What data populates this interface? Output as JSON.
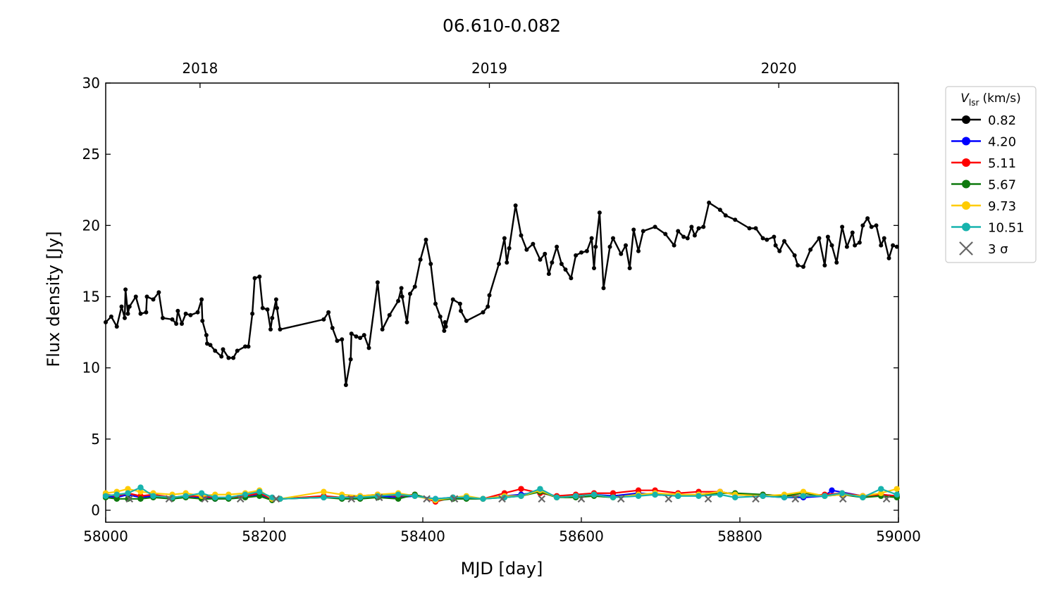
{
  "chart_data": {
    "type": "line",
    "title": "06.610-0.082",
    "xlabel": "MJD [day]",
    "ylabel": "Flux density [Jy]",
    "xlim": [
      58000,
      59000
    ],
    "xticks": [
      58000,
      58200,
      58400,
      58600,
      58800,
      59000
    ],
    "ylim": [
      -0.84,
      30
    ],
    "yticks": [
      0,
      5,
      10,
      15,
      20,
      25,
      30
    ],
    "top_xticks": [
      {
        "value": 58119,
        "label": "2018"
      },
      {
        "value": 58484,
        "label": "2019"
      },
      {
        "value": 58849,
        "label": "2020"
      }
    ],
    "grid": false,
    "legend": "outside right",
    "legend_title": {
      "symbol": "V",
      "subscript": "lsr",
      "unit": "(km/s)"
    },
    "series": [
      {
        "name": "0.82",
        "color": "#000000",
        "marker": "circle",
        "x": [
          58000,
          58007,
          58014,
          58020,
          58024,
          58025,
          58028,
          58030,
          58038,
          58044,
          58051,
          58052,
          58060,
          58067,
          58072,
          58084,
          58089,
          58091,
          58096,
          58101,
          58107,
          58116,
          58121,
          58122,
          58127,
          58128,
          58132,
          58138,
          58146,
          58148,
          58155,
          58161,
          58166,
          58176,
          58180,
          58185,
          58188,
          58194,
          58198,
          58204,
          58208,
          58210,
          58215,
          58216,
          58220,
          58275,
          58281,
          58286,
          58292,
          58298,
          58303,
          58309,
          58310,
          58316,
          58321,
          58326,
          58332,
          58343,
          58349,
          58358,
          58369,
          58373,
          58374,
          58380,
          58384,
          58390,
          58397,
          58404,
          58410,
          58416,
          58422,
          58427,
          58428,
          58429,
          58438,
          58447,
          58448,
          58455,
          58476,
          58482,
          58484,
          58496,
          58503,
          58506,
          58509,
          58517,
          58524,
          58531,
          58539,
          58548,
          58554,
          58559,
          58563,
          58569,
          58575,
          58580,
          58587,
          58593,
          58600,
          58607,
          58613,
          58616,
          58618,
          58623,
          58628,
          58636,
          58640,
          58650,
          58656,
          58661,
          58666,
          58672,
          58678,
          58693,
          58706,
          58717,
          58722,
          58729,
          58734,
          58739,
          58743,
          58748,
          58754,
          58761,
          58775,
          58782,
          58794,
          58812,
          58820,
          58829,
          58834,
          58843,
          58845,
          58850,
          58856,
          58869,
          58873,
          58880,
          58889,
          58900,
          58907,
          58911,
          58916,
          58922,
          58929,
          58935,
          58942,
          58945,
          58951,
          58955,
          58961,
          58966,
          58972,
          58978,
          58982,
          58988,
          58993,
          58998
        ],
        "values": [
          13.2,
          13.6,
          12.9,
          14.3,
          13.5,
          15.5,
          13.8,
          14.3,
          15.0,
          13.8,
          13.9,
          15.0,
          14.8,
          15.3,
          13.5,
          13.4,
          13.1,
          14.0,
          13.1,
          13.8,
          13.7,
          13.9,
          14.8,
          13.3,
          12.3,
          11.7,
          11.6,
          11.2,
          10.8,
          11.3,
          10.7,
          10.7,
          11.2,
          11.5,
          11.5,
          13.8,
          16.3,
          16.4,
          14.2,
          14.1,
          12.7,
          13.5,
          14.8,
          14.2,
          12.7,
          13.4,
          13.9,
          12.8,
          11.9,
          12.0,
          8.8,
          10.6,
          12.4,
          12.2,
          12.1,
          12.3,
          11.4,
          16.0,
          12.7,
          13.7,
          14.7,
          15.6,
          15.0,
          13.2,
          15.2,
          15.7,
          17.6,
          19.0,
          17.3,
          14.5,
          13.6,
          12.6,
          13.2,
          12.9,
          14.8,
          14.5,
          14.0,
          13.3,
          13.9,
          14.3,
          15.1,
          17.3,
          19.1,
          17.4,
          18.4,
          21.4,
          19.3,
          18.3,
          18.7,
          17.6,
          18.0,
          16.6,
          17.4,
          18.5,
          17.3,
          16.9,
          16.3,
          17.9,
          18.1,
          18.2,
          19.1,
          17.0,
          18.5,
          20.9,
          15.6,
          18.5,
          19.1,
          18.0,
          18.6,
          17.0,
          19.7,
          18.2,
          19.6,
          19.9,
          19.4,
          18.6,
          19.6,
          19.2,
          19.1,
          19.9,
          19.3,
          19.8,
          19.9,
          21.6,
          21.1,
          20.7,
          20.4,
          19.8,
          19.8,
          19.1,
          19.0,
          19.2,
          18.6,
          18.2,
          18.9,
          17.9,
          17.2,
          17.1,
          18.3,
          19.1,
          17.2,
          19.2,
          18.6,
          17.4,
          19.9,
          18.5,
          19.5,
          18.6,
          18.8,
          20.0,
          20.5,
          19.9,
          20.0,
          18.6,
          19.1,
          17.7,
          18.6,
          18.5
        ]
      },
      {
        "name": "4.20",
        "color": "#0000ff",
        "marker": "circle",
        "x": [
          58000,
          58014,
          58028,
          58044,
          58060,
          58084,
          58101,
          58121,
          58138,
          58155,
          58176,
          58194,
          58210,
          58220,
          58275,
          58298,
          58321,
          58343,
          58369,
          58390,
          58416,
          58438,
          58455,
          58476,
          58503,
          58524,
          58548,
          58569,
          58593,
          58616,
          58640,
          58672,
          58693,
          58722,
          58748,
          58775,
          58794,
          58829,
          58856,
          58880,
          58907,
          58916,
          58955,
          58978,
          58998
        ],
        "values": [
          1.0,
          0.9,
          1.1,
          0.9,
          1.0,
          0.9,
          1.0,
          0.9,
          0.8,
          0.9,
          1.0,
          1.1,
          0.8,
          0.8,
          0.9,
          0.9,
          0.9,
          1.0,
          0.9,
          1.0,
          0.8,
          0.9,
          0.9,
          0.8,
          1.0,
          1.1,
          1.3,
          0.9,
          1.0,
          1.1,
          1.0,
          1.2,
          1.1,
          1.0,
          1.1,
          1.3,
          1.1,
          1.0,
          0.9,
          0.9,
          1.0,
          1.4,
          1.0,
          1.1,
          1.0
        ]
      },
      {
        "name": "5.11",
        "color": "#ff0000",
        "marker": "circle",
        "x": [
          58000,
          58014,
          58028,
          58044,
          58060,
          58084,
          58101,
          58121,
          58138,
          58155,
          58176,
          58194,
          58210,
          58220,
          58275,
          58298,
          58321,
          58343,
          58369,
          58390,
          58416,
          58438,
          58455,
          58476,
          58503,
          58524,
          58548,
          58569,
          58593,
          58616,
          58640,
          58672,
          58693,
          58722,
          58748,
          58775,
          58794,
          58829,
          58856,
          58880,
          58907,
          58929,
          58955,
          58978,
          58998
        ],
        "values": [
          1.1,
          1.0,
          1.2,
          1.0,
          1.1,
          0.9,
          1.0,
          1.0,
          0.9,
          0.9,
          1.0,
          1.2,
          0.8,
          0.8,
          1.0,
          0.9,
          1.0,
          1.1,
          1.0,
          1.1,
          0.6,
          0.9,
          0.9,
          0.8,
          1.2,
          1.5,
          1.2,
          1.0,
          1.1,
          1.2,
          1.2,
          1.4,
          1.4,
          1.2,
          1.3,
          1.3,
          1.1,
          1.1,
          1.0,
          1.0,
          1.1,
          1.2,
          1.0,
          1.1,
          1.0
        ]
      },
      {
        "name": "5.67",
        "color": "#0f7a0f",
        "marker": "circle",
        "x": [
          58000,
          58014,
          58028,
          58044,
          58060,
          58084,
          58101,
          58121,
          58138,
          58155,
          58176,
          58194,
          58210,
          58220,
          58275,
          58298,
          58321,
          58343,
          58369,
          58390,
          58416,
          58438,
          58455,
          58476,
          58503,
          58524,
          58548,
          58569,
          58593,
          58616,
          58640,
          58672,
          58693,
          58722,
          58748,
          58775,
          58794,
          58829,
          58856,
          58880,
          58907,
          58929,
          58955,
          58978,
          58998
        ],
        "values": [
          0.9,
          0.8,
          0.8,
          0.8,
          0.9,
          0.8,
          0.9,
          0.8,
          0.8,
          0.8,
          0.9,
          1.0,
          0.7,
          0.8,
          0.9,
          0.8,
          0.8,
          0.9,
          0.8,
          1.1,
          0.7,
          0.8,
          0.8,
          0.8,
          0.9,
          1.0,
          1.3,
          0.9,
          0.9,
          1.0,
          0.9,
          1.1,
          1.1,
          1.0,
          1.1,
          1.2,
          1.2,
          1.1,
          1.0,
          1.2,
          1.0,
          1.1,
          0.9,
          1.0,
          0.9
        ]
      },
      {
        "name": "9.73",
        "color": "#ffcc00",
        "marker": "circle",
        "x": [
          58000,
          58014,
          58028,
          58044,
          58060,
          58084,
          58101,
          58121,
          58138,
          58155,
          58176,
          58194,
          58210,
          58220,
          58275,
          58298,
          58321,
          58343,
          58369,
          58390,
          58416,
          58438,
          58455,
          58476,
          58503,
          58524,
          58548,
          58569,
          58593,
          58616,
          58640,
          58672,
          58693,
          58722,
          58748,
          58775,
          58794,
          58829,
          58856,
          58880,
          58907,
          58929,
          58955,
          58978,
          58998
        ],
        "values": [
          1.2,
          1.3,
          1.5,
          1.3,
          1.2,
          1.1,
          1.2,
          1.0,
          1.1,
          1.1,
          1.2,
          1.4,
          0.8,
          0.8,
          1.3,
          1.1,
          1.0,
          1.1,
          1.2,
          1.0,
          0.7,
          0.9,
          1.0,
          0.8,
          1.0,
          1.0,
          1.4,
          0.9,
          1.0,
          1.1,
          0.9,
          1.1,
          1.2,
          1.1,
          1.1,
          1.3,
          1.1,
          1.0,
          1.1,
          1.3,
          1.0,
          1.1,
          1.0,
          1.2,
          1.5
        ]
      },
      {
        "name": "10.51",
        "color": "#17b3ad",
        "marker": "circle",
        "x": [
          58000,
          58014,
          58028,
          58044,
          58060,
          58084,
          58101,
          58121,
          58138,
          58155,
          58176,
          58194,
          58210,
          58220,
          58275,
          58298,
          58321,
          58343,
          58369,
          58390,
          58416,
          58438,
          58455,
          58476,
          58503,
          58524,
          58548,
          58569,
          58593,
          58616,
          58640,
          58672,
          58693,
          58722,
          58748,
          58775,
          58794,
          58829,
          58856,
          58880,
          58907,
          58929,
          58955,
          58978,
          58998
        ],
        "values": [
          1.0,
          1.1,
          1.2,
          1.6,
          1.0,
          0.9,
          1.0,
          1.2,
          0.9,
          0.9,
          1.1,
          1.3,
          0.9,
          0.8,
          0.9,
          0.9,
          0.9,
          1.0,
          1.1,
          1.0,
          0.8,
          0.9,
          0.9,
          0.8,
          0.9,
          1.0,
          1.5,
          0.9,
          1.0,
          1.1,
          0.9,
          1.0,
          1.1,
          1.0,
          1.0,
          1.1,
          0.9,
          1.0,
          0.9,
          1.0,
          1.0,
          1.2,
          0.9,
          1.5,
          1.1
        ]
      },
      {
        "name": "3 σ",
        "color": "#666666",
        "marker": "x",
        "line": false,
        "x": [
          58030,
          58080,
          58125,
          58170,
          58215,
          58310,
          58345,
          58405,
          58440,
          58500,
          58550,
          58600,
          58650,
          58710,
          58760,
          58820,
          58870,
          58930,
          58985
        ],
        "values": [
          0.8,
          0.8,
          0.8,
          0.8,
          0.8,
          0.8,
          0.9,
          0.8,
          0.8,
          0.8,
          0.8,
          0.8,
          0.8,
          0.8,
          0.8,
          0.8,
          0.8,
          0.8,
          0.8
        ]
      }
    ]
  }
}
